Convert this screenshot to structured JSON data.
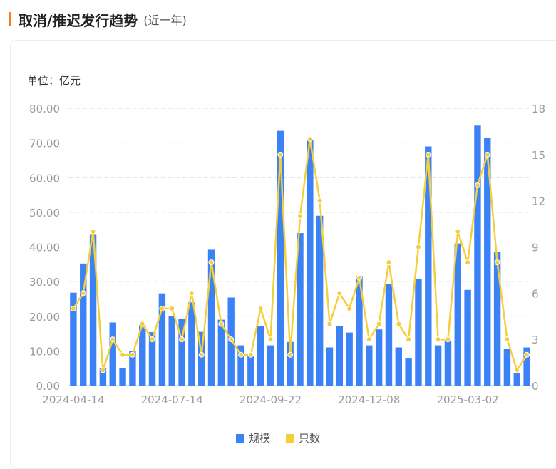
{
  "header": {
    "title": "取消/推迟发行趋势",
    "subtitle": "(近一年)"
  },
  "colors": {
    "accent": "#ff7a1a",
    "bar": "#3b82f6",
    "line": "#f5cf3a"
  },
  "unit_label": "单位：亿元",
  "legend": {
    "bar_label": "规模",
    "line_label": "只数"
  },
  "chart_data": {
    "type": "bar",
    "x_tick_labels": [
      "2024-04-14",
      "2024-07-14",
      "2024-09-22",
      "2024-12-08",
      "2025-03-02"
    ],
    "left_axis": {
      "ylim": [
        0,
        80
      ],
      "ticks": [
        "0.00",
        "10.00",
        "20.00",
        "30.00",
        "40.00",
        "50.00",
        "60.00",
        "70.00",
        "80.00"
      ]
    },
    "right_axis": {
      "ylim": [
        0,
        18
      ],
      "ticks": [
        "0",
        "3",
        "6",
        "9",
        "12",
        "15",
        "18"
      ]
    },
    "grid": true,
    "legend_position": "bottom",
    "series": [
      {
        "name": "规模",
        "type": "bar",
        "axis": "left",
        "values": [
          26.8,
          35.2,
          43.5,
          5.0,
          18.2,
          5.0,
          10.0,
          17.4,
          15.4,
          26.6,
          20.0,
          19.2,
          24.0,
          15.5,
          39.2,
          19.0,
          25.4,
          11.6,
          8.5,
          17.2,
          11.6,
          73.5,
          12.6,
          44.0,
          71.0,
          49.0,
          11.0,
          17.2,
          15.3,
          31.6,
          11.6,
          16.2,
          29.4,
          11.0,
          8.0,
          30.8,
          69.0,
          11.6,
          13.0,
          41.0,
          27.6,
          75.0,
          71.5,
          38.6,
          10.6,
          3.6,
          11.0
        ]
      },
      {
        "name": "只数",
        "type": "line",
        "axis": "right",
        "values": [
          5,
          6,
          10,
          1,
          3,
          2,
          2,
          4,
          3,
          5,
          5,
          3,
          6,
          2,
          8,
          4,
          3,
          2,
          2,
          5,
          3,
          15,
          2,
          11,
          16,
          12,
          4,
          6,
          5,
          7,
          3,
          4,
          8,
          4,
          3,
          9,
          15,
          3,
          3,
          10,
          8,
          13,
          15,
          8,
          3,
          1,
          2
        ]
      }
    ]
  }
}
